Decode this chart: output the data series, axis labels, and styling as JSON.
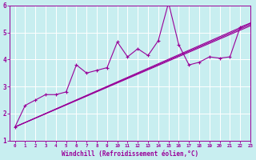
{
  "x": [
    0,
    1,
    2,
    3,
    4,
    5,
    6,
    7,
    8,
    9,
    10,
    11,
    12,
    13,
    14,
    15,
    16,
    17,
    18,
    19,
    20,
    21,
    22,
    23
  ],
  "y_main": [
    1.5,
    2.3,
    2.5,
    2.7,
    2.7,
    2.8,
    3.8,
    3.5,
    3.6,
    3.7,
    4.65,
    4.1,
    4.4,
    4.15,
    4.7,
    6.1,
    4.55,
    3.8,
    3.9,
    4.1,
    4.05,
    4.1,
    5.2,
    5.35
  ],
  "color": "#990099",
  "bg_color": "#c8eef0",
  "grid_color": "#ffffff",
  "xlabel": "Windchill (Refroidissement éolien,°C)",
  "ylim": [
    1,
    6
  ],
  "xlim": [
    -0.5,
    23
  ],
  "yticks": [
    1,
    2,
    3,
    4,
    5,
    6
  ],
  "xticks": [
    0,
    1,
    2,
    3,
    4,
    5,
    6,
    7,
    8,
    9,
    10,
    11,
    12,
    13,
    14,
    15,
    16,
    17,
    18,
    19,
    20,
    21,
    22,
    23
  ],
  "reg1_start": 1.5,
  "reg1_end": 5.35,
  "reg2_start": 1.5,
  "reg2_end": 5.3,
  "reg3_start": 1.5,
  "reg3_end": 5.25
}
